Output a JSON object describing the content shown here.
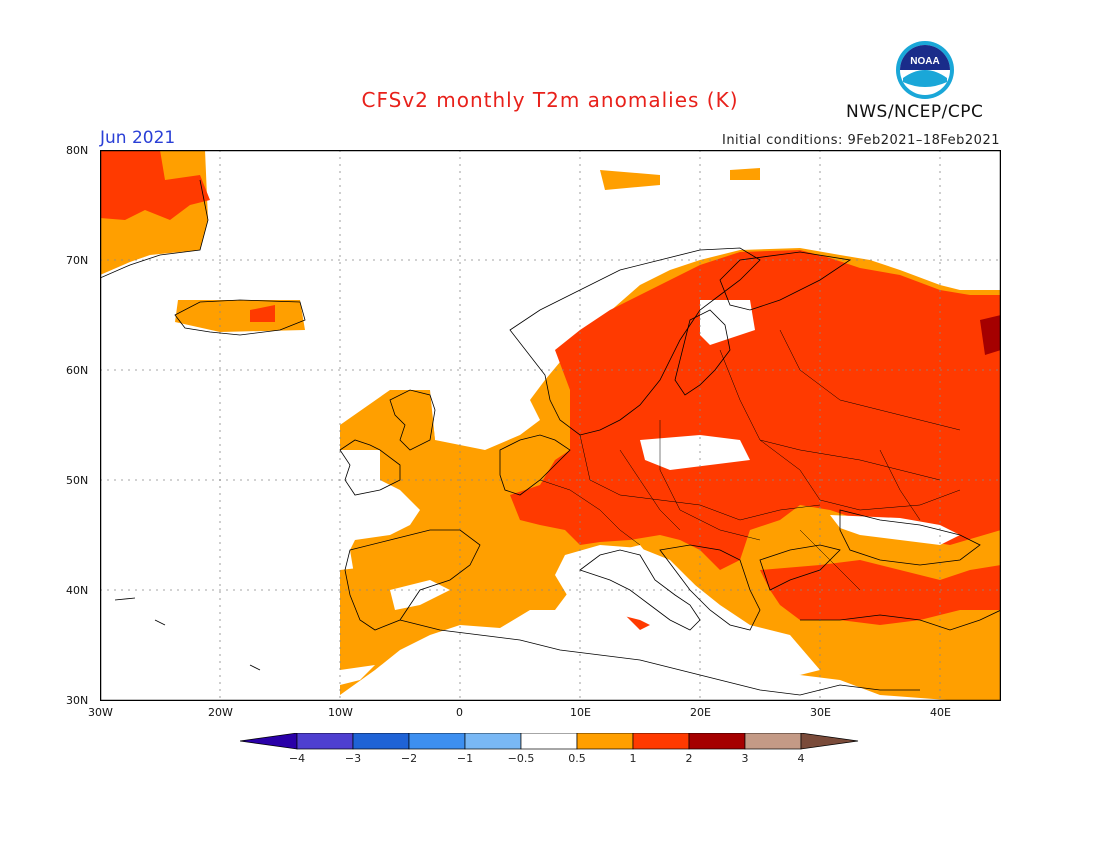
{
  "header": {
    "title": "CFSv2 monthly T2m anomalies (K)",
    "month": "Jun 2021",
    "initial_conditions": "Initial conditions: 9Feb2021–18Feb2021",
    "agency": "NWS/NCEP/CPC",
    "logo_text": "NOAA"
  },
  "map": {
    "region": "Europe",
    "lon_range": [
      -30,
      45
    ],
    "lat_range": [
      30,
      80
    ],
    "lat_labels": [
      "80N",
      "70N",
      "60N",
      "50N",
      "40N",
      "30N"
    ],
    "lon_labels": [
      "30W",
      "20W",
      "10W",
      "0",
      "10E",
      "20E",
      "30E",
      "40E"
    ],
    "grid": "dotted",
    "colors": {
      "neutral": "#ffffff",
      "warm_0_5_1": "#ff9f00",
      "warm_1_2": "#ff3a00",
      "warm_2_3": "#a50000",
      "land_outline": "#000000"
    }
  },
  "legend": {
    "ticks": [
      "−4",
      "−3",
      "−2",
      "−1",
      "−0.5",
      "0.5",
      "1",
      "2",
      "3",
      "4"
    ],
    "colors": [
      "#2a00a8",
      "#4e3fd0",
      "#1f63d6",
      "#3d8ff0",
      "#79b8f5",
      "#ffffff",
      "#ff9f00",
      "#ff3a00",
      "#a50000",
      "#c49a86",
      "#7a4b3a"
    ]
  }
}
